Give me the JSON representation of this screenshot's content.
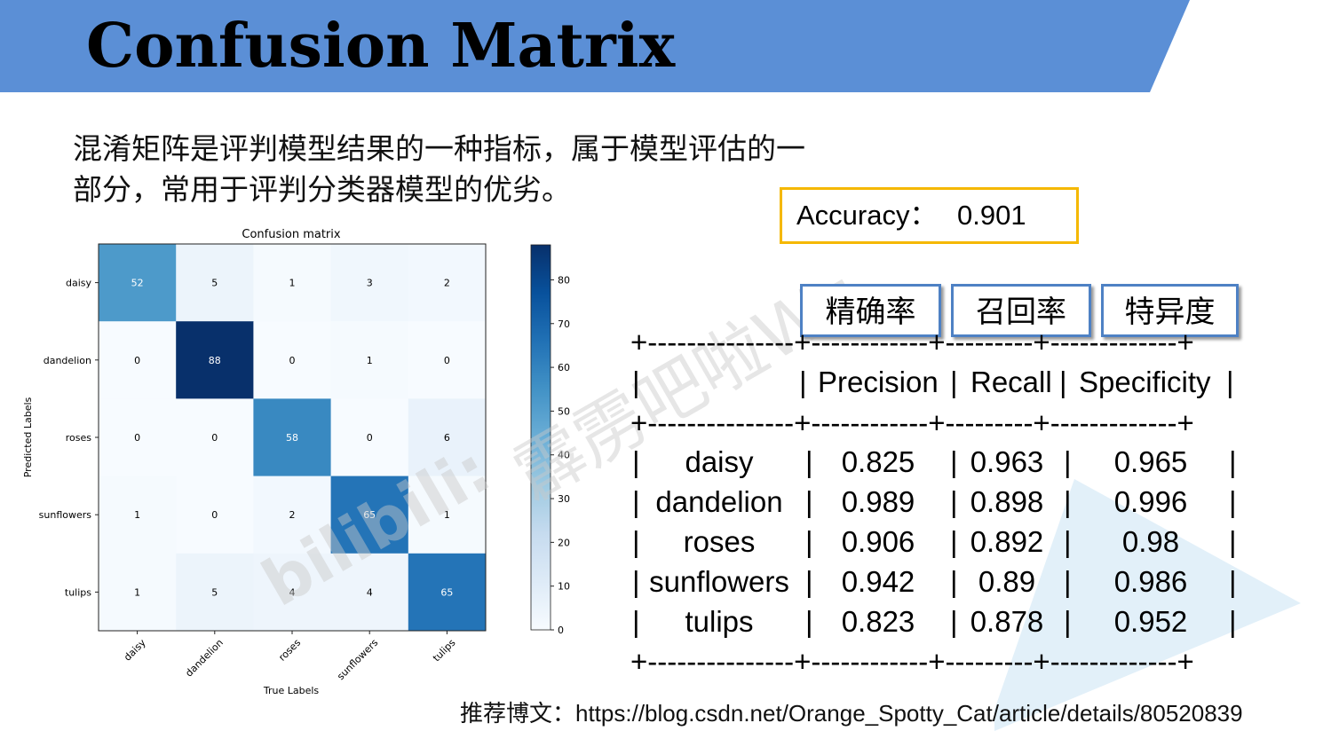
{
  "slide": {
    "title": "Confusion Matrix",
    "intro_line1": "混淆矩阵是评判模型结果的一种指标，属于模型评估的一",
    "intro_line2": "部分，常用于评判分类器模型的优劣。",
    "accuracy_label": "Accuracy：",
    "accuracy_value": "0.901",
    "metric_tabs": [
      "精确率",
      "召回率",
      "特异度"
    ],
    "footer": "推荐博文：https://blog.csdn.net/Orange_Spotty_Cat/article/details/80520839",
    "watermark_line1": "霹雳吧啦Wz",
    "watermark_line2": "bilibili:",
    "header_color": "#5b8fd6",
    "tab_border_color": "#4e81c4",
    "accuracy_border_color": "#f5b800"
  },
  "metrics_table": {
    "border_line": "+---------------+------------+---------+-------------+",
    "headers": [
      "",
      "Precision",
      "Recall",
      "Specificity"
    ],
    "rows": [
      {
        "label": "daisy",
        "precision": "0.825",
        "recall": "0.963",
        "specificity": "0.965"
      },
      {
        "label": "dandelion",
        "precision": "0.989",
        "recall": "0.898",
        "specificity": "0.996"
      },
      {
        "label": "roses",
        "precision": "0.906",
        "recall": "0.892",
        "specificity": "0.98"
      },
      {
        "label": "sunflowers",
        "precision": "0.942",
        "recall": "0.89",
        "specificity": "0.986"
      },
      {
        "label": "tulips",
        "precision": "0.823",
        "recall": "0.878",
        "specificity": "0.952"
      }
    ]
  },
  "chart_data": {
    "type": "heatmap",
    "title": "Confusion matrix",
    "xlabel": "True Labels",
    "ylabel": "Predicted Labels",
    "x_categories": [
      "daisy",
      "dandelion",
      "roses",
      "sunflowers",
      "tulips"
    ],
    "y_categories": [
      "daisy",
      "dandelion",
      "roses",
      "sunflowers",
      "tulips"
    ],
    "values": [
      [
        52,
        5,
        1,
        3,
        2
      ],
      [
        0,
        88,
        0,
        1,
        0
      ],
      [
        0,
        0,
        58,
        0,
        6
      ],
      [
        1,
        0,
        2,
        65,
        1
      ],
      [
        1,
        5,
        4,
        4,
        65
      ]
    ],
    "colormap": "Blues",
    "vmin": 0,
    "vmax": 88,
    "colorbar_ticks": [
      0,
      10,
      20,
      30,
      40,
      50,
      60,
      70,
      80
    ],
    "grid": false,
    "legend": "colorbar-right"
  }
}
